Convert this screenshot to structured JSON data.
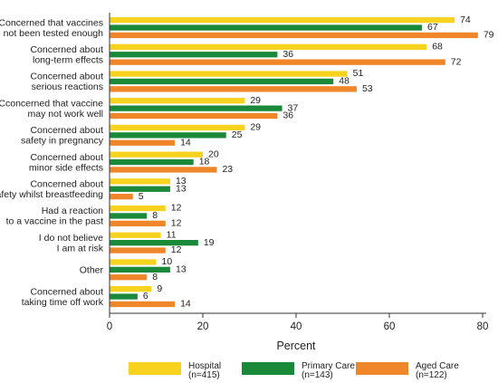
{
  "chart_data": {
    "type": "bar",
    "orientation": "horizontal",
    "xlabel": "Percent",
    "xlim": [
      0,
      80
    ],
    "xticks": [
      0,
      20,
      40,
      60,
      80
    ],
    "grid": false,
    "legend_position": "bottom",
    "categories": [
      [
        "Concerned that vaccines",
        "not been tested enough"
      ],
      [
        "Concerned about",
        "long-term effects"
      ],
      [
        "Concerned about",
        "serious reactions"
      ],
      [
        "Cconcerned that vaccine",
        "may not work well"
      ],
      [
        "Concerned about",
        "safety in pregnancy"
      ],
      [
        "Concerned about",
        "minor side effects"
      ],
      [
        "Concerned about",
        "safety whilst breastfeeding"
      ],
      [
        "Had a reaction",
        "to a vaccine in the past"
      ],
      [
        "I do not believe",
        "I am at risk"
      ],
      [
        "Other"
      ],
      [
        "Concerned about",
        "taking time off work"
      ]
    ],
    "series": [
      {
        "name": "Hospital",
        "n": "(n=415)",
        "color": "#f7d21f",
        "values": [
          74,
          68,
          51,
          29,
          29,
          20,
          13,
          12,
          11,
          10,
          9
        ]
      },
      {
        "name": "Primary Care",
        "n": "(n=143)",
        "color": "#1a8a3a",
        "values": [
          67,
          36,
          48,
          37,
          25,
          18,
          13,
          8,
          19,
          13,
          6
        ]
      },
      {
        "name": "Aged Care",
        "n": "(n=122)",
        "color": "#f0862a",
        "values": [
          79,
          72,
          53,
          36,
          14,
          23,
          5,
          12,
          12,
          8,
          14
        ]
      }
    ]
  }
}
